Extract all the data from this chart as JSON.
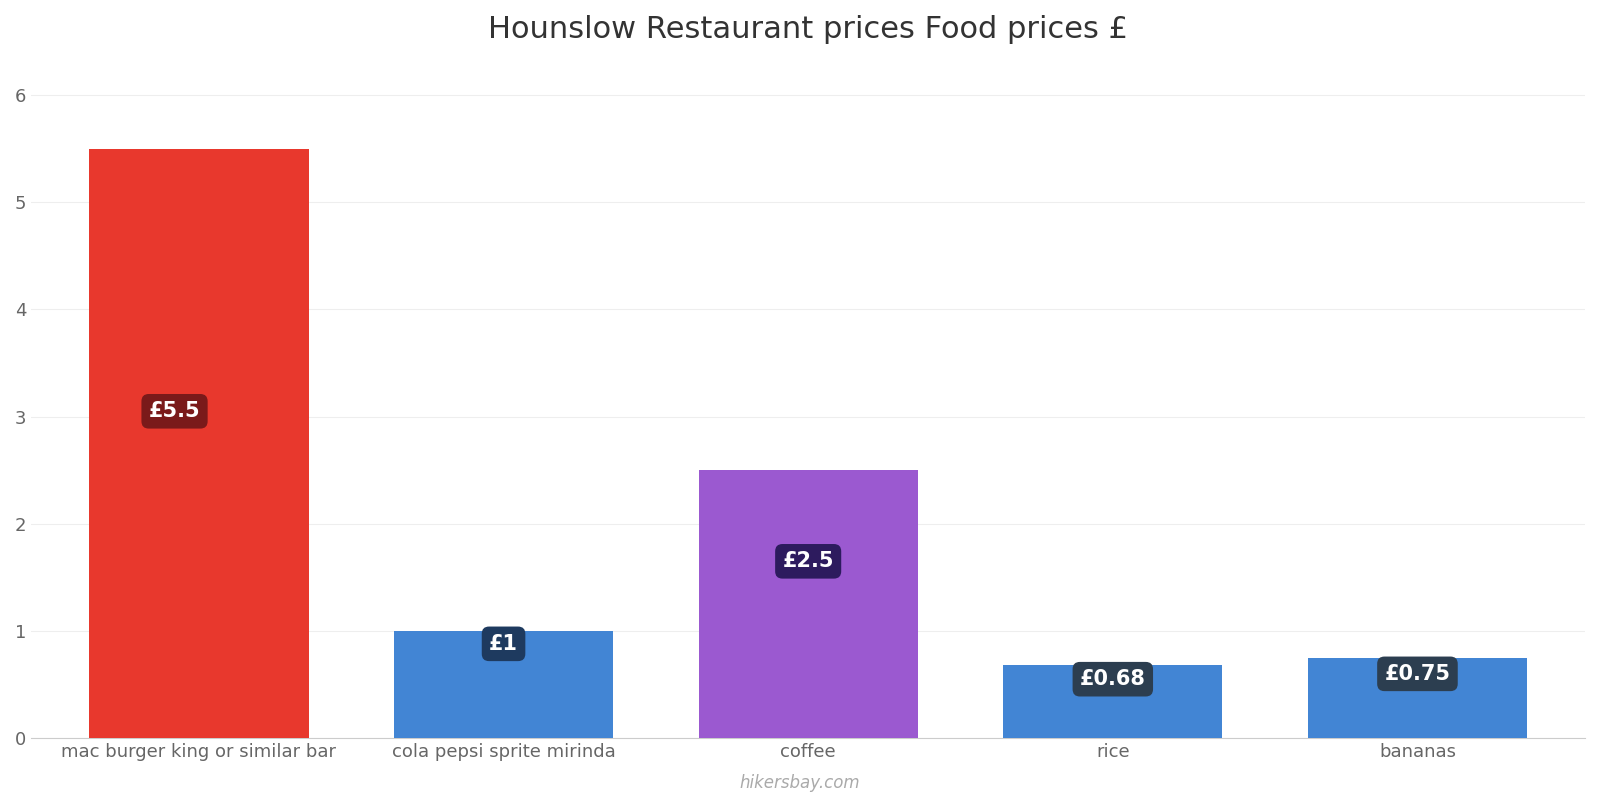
{
  "title": "Hounslow Restaurant prices Food prices £",
  "categories": [
    "mac burger king or similar bar",
    "cola pepsi sprite mirinda",
    "coffee",
    "rice",
    "bananas"
  ],
  "values": [
    5.5,
    1.0,
    2.5,
    0.68,
    0.75
  ],
  "bar_colors": [
    "#e8382d",
    "#4285d4",
    "#9b59d0",
    "#4285d4",
    "#4285d4"
  ],
  "label_texts": [
    "£5.5",
    "£1",
    "£2.5",
    "£0.68",
    "£0.75"
  ],
  "label_bg_colors": [
    "#7a1a1a",
    "#1e3a5f",
    "#2d1b5e",
    "#2c3e50",
    "#2c3e50"
  ],
  "ylim": [
    0,
    6.3
  ],
  "yticks": [
    0,
    1,
    2,
    3,
    4,
    5,
    6
  ],
  "background_color": "#ffffff",
  "title_fontsize": 22,
  "tick_label_fontsize": 13,
  "watermark": "hikersbay.com",
  "label_y_positions": [
    3.05,
    0.88,
    1.65,
    0.55,
    0.6
  ],
  "label_x_offsets": [
    -0.08,
    0.0,
    0.0,
    0.0,
    0.0
  ],
  "bar_width": 0.72
}
